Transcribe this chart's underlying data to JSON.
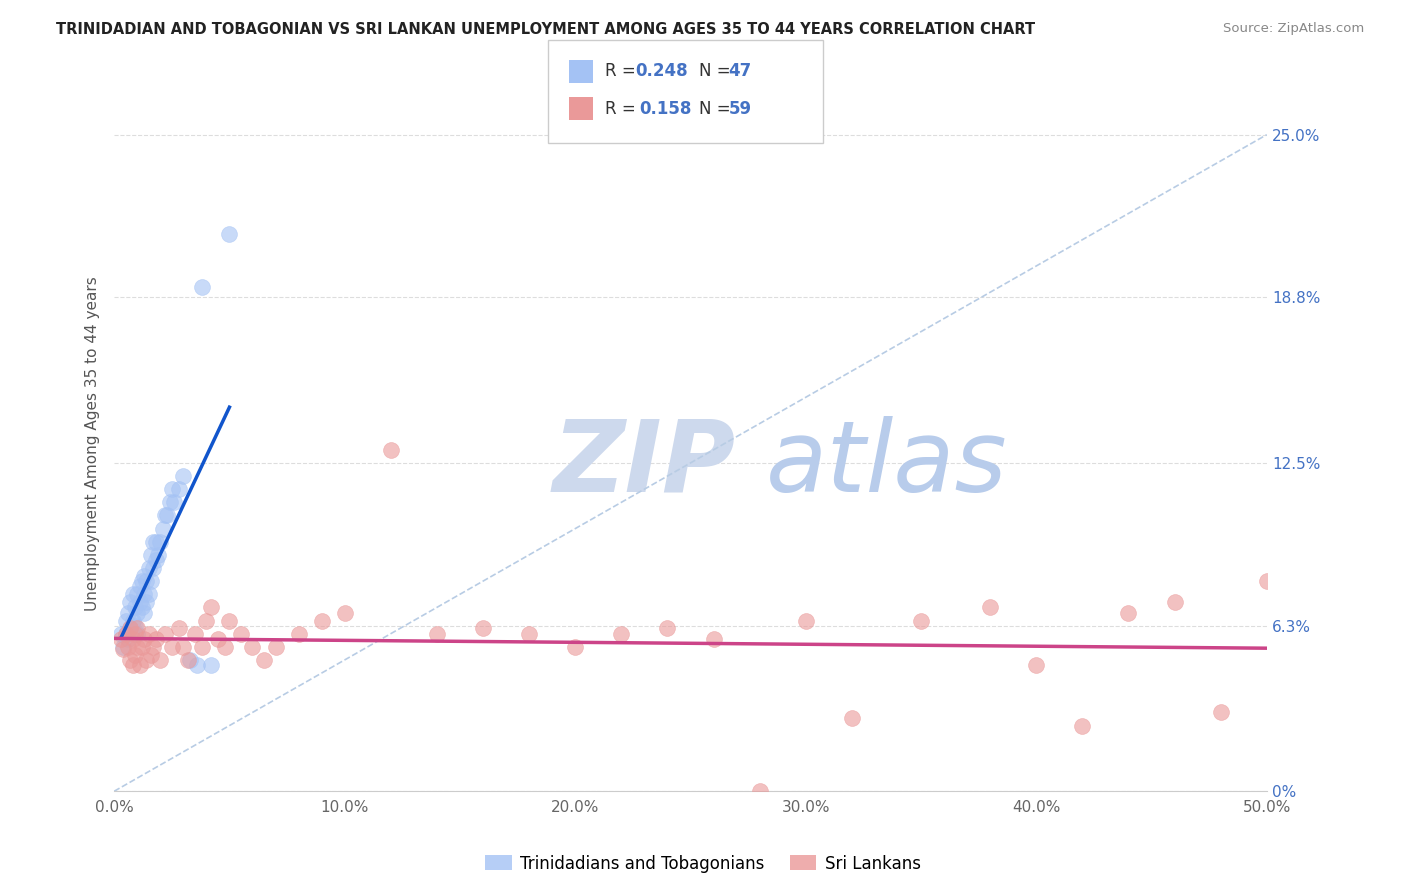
{
  "title": "TRINIDADIAN AND TOBAGONIAN VS SRI LANKAN UNEMPLOYMENT AMONG AGES 35 TO 44 YEARS CORRELATION CHART",
  "source": "Source: ZipAtlas.com",
  "ylabel": "Unemployment Among Ages 35 to 44 years",
  "xlim": [
    0.0,
    0.5
  ],
  "ylim": [
    0.0,
    0.265
  ],
  "blue_color": "#a4c2f4",
  "pink_color": "#ea9999",
  "blue_line_color": "#1155cc",
  "pink_line_color": "#cc4488",
  "ref_line_color": "#b8cce4",
  "watermark_zip": "ZIP",
  "watermark_atlas": "atlas",
  "watermark_color_zip": "#c8d8ef",
  "watermark_color_atlas": "#b0c8e8",
  "background_color": "#ffffff",
  "legend_r1": "0.248",
  "legend_n1": "47",
  "legend_r2": "0.158",
  "legend_n2": "59",
  "yticks_right": [
    0.0,
    0.063,
    0.125,
    0.188,
    0.25
  ],
  "ytick_labels_right": [
    "0%",
    "6.3%",
    "12.5%",
    "18.8%",
    "25.0%"
  ],
  "xticks": [
    0.0,
    0.1,
    0.2,
    0.3,
    0.4,
    0.5
  ],
  "xticklabels": [
    "0.0%",
    "10.0%",
    "20.0%",
    "30.0%",
    "40.0%",
    "50.0%"
  ],
  "tri_x": [
    0.003,
    0.004,
    0.005,
    0.005,
    0.006,
    0.006,
    0.007,
    0.007,
    0.008,
    0.008,
    0.009,
    0.009,
    0.01,
    0.01,
    0.01,
    0.011,
    0.011,
    0.012,
    0.012,
    0.013,
    0.013,
    0.013,
    0.014,
    0.014,
    0.015,
    0.015,
    0.016,
    0.016,
    0.017,
    0.017,
    0.018,
    0.018,
    0.019,
    0.02,
    0.021,
    0.022,
    0.023,
    0.024,
    0.025,
    0.026,
    0.028,
    0.03,
    0.033,
    0.036,
    0.038,
    0.042,
    0.05
  ],
  "tri_y": [
    0.06,
    0.055,
    0.065,
    0.06,
    0.058,
    0.068,
    0.062,
    0.072,
    0.065,
    0.075,
    0.063,
    0.07,
    0.06,
    0.068,
    0.075,
    0.072,
    0.078,
    0.07,
    0.08,
    0.068,
    0.075,
    0.082,
    0.072,
    0.08,
    0.075,
    0.085,
    0.08,
    0.09,
    0.085,
    0.095,
    0.088,
    0.095,
    0.09,
    0.095,
    0.1,
    0.105,
    0.105,
    0.11,
    0.115,
    0.11,
    0.115,
    0.12,
    0.05,
    0.048,
    0.192,
    0.048,
    0.212
  ],
  "sri_x": [
    0.003,
    0.004,
    0.005,
    0.006,
    0.007,
    0.007,
    0.008,
    0.008,
    0.009,
    0.009,
    0.01,
    0.01,
    0.011,
    0.012,
    0.013,
    0.014,
    0.015,
    0.016,
    0.017,
    0.018,
    0.02,
    0.022,
    0.025,
    0.028,
    0.03,
    0.032,
    0.035,
    0.038,
    0.04,
    0.042,
    0.045,
    0.048,
    0.05,
    0.055,
    0.06,
    0.065,
    0.07,
    0.08,
    0.09,
    0.1,
    0.12,
    0.14,
    0.16,
    0.18,
    0.2,
    0.22,
    0.24,
    0.26,
    0.28,
    0.3,
    0.32,
    0.35,
    0.38,
    0.4,
    0.42,
    0.44,
    0.46,
    0.48,
    0.5
  ],
  "sri_y": [
    0.058,
    0.054,
    0.06,
    0.055,
    0.05,
    0.062,
    0.048,
    0.058,
    0.052,
    0.06,
    0.055,
    0.062,
    0.048,
    0.055,
    0.058,
    0.05,
    0.06,
    0.052,
    0.055,
    0.058,
    0.05,
    0.06,
    0.055,
    0.062,
    0.055,
    0.05,
    0.06,
    0.055,
    0.065,
    0.07,
    0.058,
    0.055,
    0.065,
    0.06,
    0.055,
    0.05,
    0.055,
    0.06,
    0.065,
    0.068,
    0.13,
    0.06,
    0.062,
    0.06,
    0.055,
    0.06,
    0.062,
    0.058,
    0.0,
    0.065,
    0.028,
    0.065,
    0.07,
    0.048,
    0.025,
    0.068,
    0.072,
    0.03,
    0.08
  ]
}
